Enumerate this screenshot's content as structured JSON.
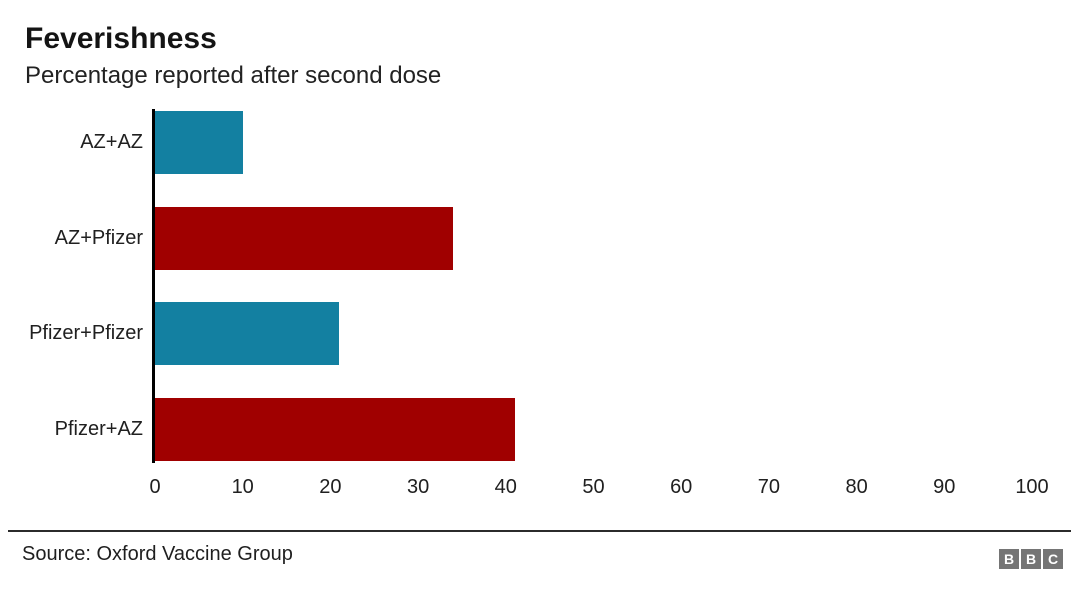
{
  "header": {
    "title": "Feverishness",
    "subtitle": "Percentage reported after second dose"
  },
  "chart_data": {
    "type": "bar",
    "orientation": "horizontal",
    "title": "Feverishness",
    "subtitle": "Percentage reported after second dose",
    "categories": [
      "AZ+AZ",
      "AZ+Pfizer",
      "Pfizer+Pfizer",
      "Pfizer+AZ"
    ],
    "values": [
      10,
      34,
      21,
      41
    ],
    "bar_colors": [
      "#1380A1",
      "#A00000",
      "#1380A1",
      "#A00000"
    ],
    "xlabel": "",
    "ylabel": "",
    "xlim": [
      0,
      100
    ],
    "x_ticks": [
      0,
      10,
      20,
      30,
      40,
      50,
      60,
      70,
      80,
      90,
      100
    ],
    "grid": false,
    "legend": false
  },
  "footer": {
    "source": "Source: Oxford Vaccine Group",
    "logo_letters": [
      "B",
      "B",
      "C"
    ],
    "logo_color": "#757575"
  }
}
